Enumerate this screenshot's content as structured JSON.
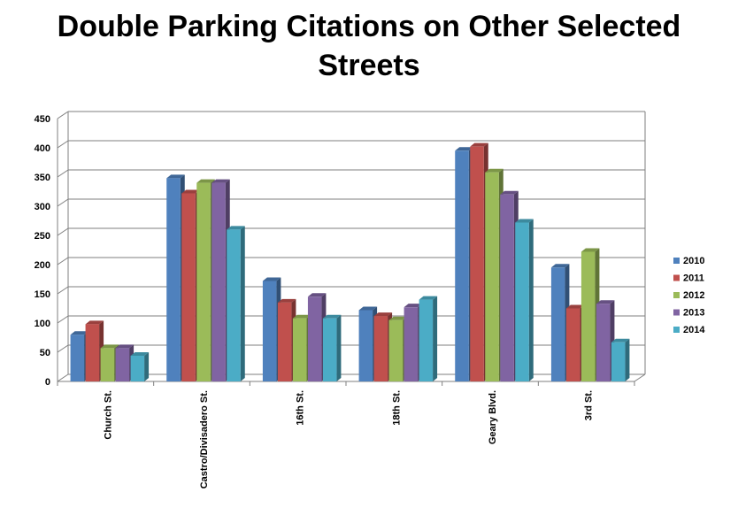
{
  "title_lines": [
    "Double Parking Citations on Other Selected",
    "Streets"
  ],
  "chart_data": {
    "type": "bar",
    "title": "Double Parking Citations on Other Selected Streets",
    "categories": [
      "Church St.",
      "Castro/Divisadero St.",
      "16th St.",
      "18th St.",
      "Geary Blvd.",
      "3rd St."
    ],
    "series": [
      {
        "name": "2010",
        "color": "#4F81BD",
        "values": [
          80,
          348,
          172,
          122,
          395,
          195
        ]
      },
      {
        "name": "2011",
        "color": "#C0504D",
        "values": [
          98,
          322,
          135,
          112,
          402,
          125
        ]
      },
      {
        "name": "2012",
        "color": "#9BBB59",
        "values": [
          57,
          340,
          108,
          105,
          358,
          222
        ]
      },
      {
        "name": "2013",
        "color": "#8064A2",
        "values": [
          57,
          340,
          145,
          127,
          320,
          133
        ]
      },
      {
        "name": "2014",
        "color": "#4BACC6",
        "values": [
          44,
          260,
          108,
          140,
          272,
          67
        ]
      }
    ],
    "ylim": [
      0,
      450
    ],
    "yticks": [
      "0",
      "50",
      "100",
      "150",
      "200",
      "250",
      "300",
      "350",
      "400",
      "450"
    ],
    "xlabel": "",
    "ylabel": "",
    "grid": true,
    "legend_position": "right"
  }
}
